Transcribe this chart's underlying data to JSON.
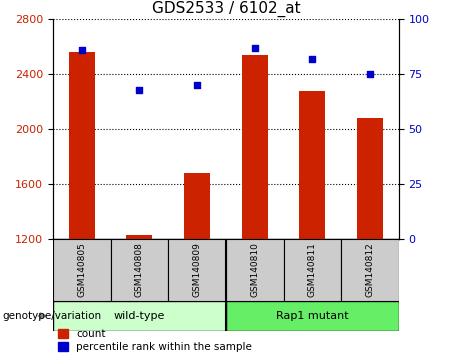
{
  "title": "GDS2533 / 6102_at",
  "categories": [
    "GSM140805",
    "GSM140808",
    "GSM140809",
    "GSM140810",
    "GSM140811",
    "GSM140812"
  ],
  "count_values": [
    2560,
    1230,
    1680,
    2540,
    2280,
    2080
  ],
  "percentile_values": [
    86,
    68,
    70,
    87,
    82,
    75
  ],
  "ylim_left": [
    1200,
    2800
  ],
  "ylim_right": [
    0,
    100
  ],
  "yticks_left": [
    1200,
    1600,
    2000,
    2400,
    2800
  ],
  "yticks_right": [
    0,
    25,
    50,
    75,
    100
  ],
  "bar_color": "#cc2200",
  "dot_color": "#0000cc",
  "bar_width": 0.45,
  "groups": [
    {
      "label": "wild-type",
      "indices": [
        0,
        1,
        2
      ],
      "color": "#ccffcc"
    },
    {
      "label": "Rap1 mutant",
      "indices": [
        3,
        4,
        5
      ],
      "color": "#66ee66"
    }
  ],
  "group_label": "genotype/variation",
  "legend_items": [
    {
      "label": "count",
      "color": "#cc2200"
    },
    {
      "label": "percentile rank within the sample",
      "color": "#0000cc"
    }
  ],
  "tick_color_left": "#cc2200",
  "tick_color_right": "#0000cc",
  "xlabel_bg": "#cccccc",
  "title_fontsize": 11,
  "yticklabel_fontsize": 8,
  "legend_fontsize": 7.5
}
